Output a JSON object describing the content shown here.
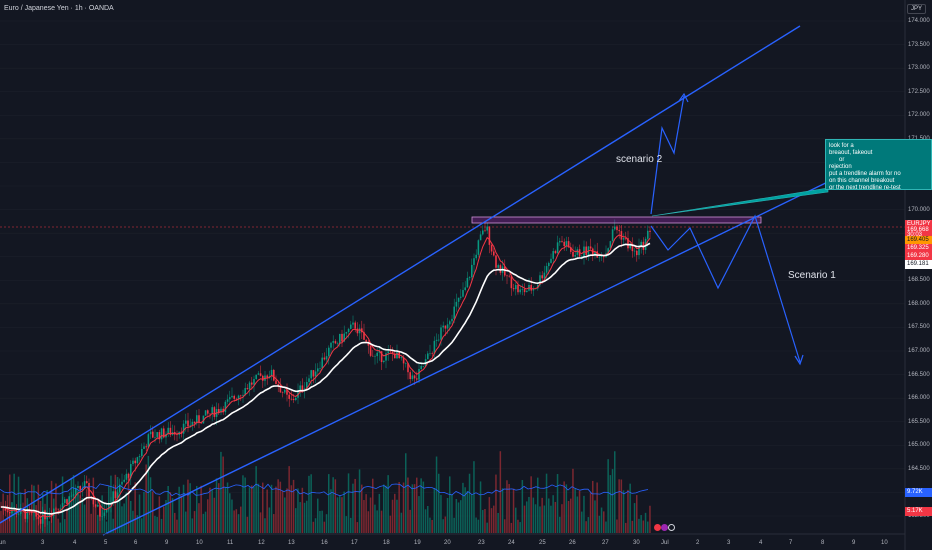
{
  "header": {
    "symbol_title": "Euro / Japanese Yen · 1h · OANDA",
    "currency": "JPY"
  },
  "price_axis": {
    "labels": [
      "174.000",
      "173.500",
      "173.000",
      "172.500",
      "172.000",
      "171.500",
      "171.000",
      "170.500",
      "170.000",
      "169.500",
      "169.000",
      "168.500",
      "168.000",
      "167.500",
      "167.000",
      "166.500",
      "166.000",
      "165.500",
      "165.000",
      "164.500",
      "164.000",
      "163.500"
    ],
    "tags": [
      {
        "text": "EURJPY",
        "color": "#f23645"
      },
      {
        "text": "169.668",
        "color": "#f23645"
      },
      {
        "text": "30:03",
        "color": "#f23645"
      },
      {
        "text": "169.405",
        "color": "#ff9800"
      },
      {
        "text": "169.325",
        "color": "#f23645"
      },
      {
        "text": "169.280",
        "color": "#f23645"
      },
      {
        "text": "169.181",
        "color": "#ffffff"
      }
    ],
    "volume_tags": [
      {
        "text": "9.72K",
        "color": "#2962ff"
      },
      {
        "text": "5.17K",
        "color": "#f23645"
      }
    ]
  },
  "time_axis": {
    "labels": [
      "un",
      "3",
      "4",
      "5",
      "6",
      "9",
      "10",
      "11",
      "12",
      "13",
      "16",
      "17",
      "18",
      "19",
      "20",
      "23",
      "24",
      "25",
      "26",
      "27",
      "30",
      "Jul",
      "2",
      "3",
      "4",
      "7",
      "8",
      "9",
      "10"
    ]
  },
  "annotations": {
    "note_text": "look for a\nbreaout, fakeout\n      or\nrejection\nput a trendline alarm for no\non this channel breakout\nor the next trendline re-test",
    "scenario_1": "Scenario 1",
    "scenario_2": "scenario 2"
  },
  "chart_data": {
    "type": "line",
    "symbol": "EURJPY",
    "timeframe": "1h",
    "ylim": [
      163.25,
      174.2
    ],
    "last_price": 169.668,
    "colors": {
      "up": "#089981",
      "down": "#f23645",
      "channel": "#2962ff",
      "ema_white": "#ffffff",
      "ema_red": "#f23645",
      "note": "#00797a"
    },
    "resistance_zone": [
      169.78,
      169.88
    ]
  }
}
